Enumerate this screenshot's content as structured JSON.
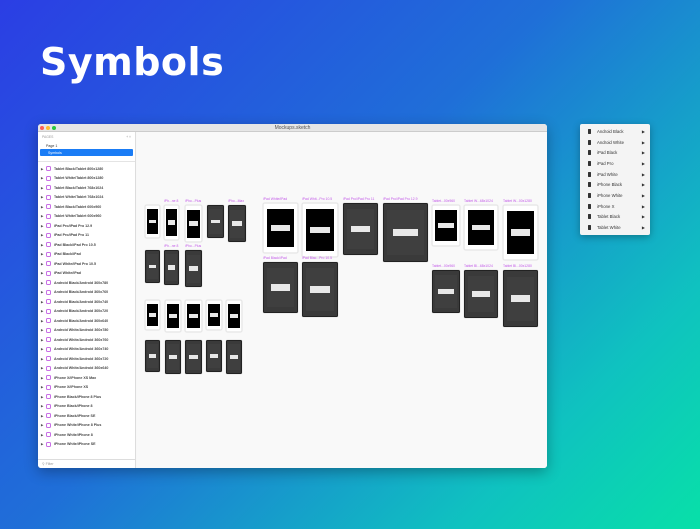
{
  "heading": "Symbols",
  "window": {
    "title": "Mockups.sketch",
    "traffic_colors": [
      "#fc5f57",
      "#fdbc2e",
      "#28c840"
    ]
  },
  "sidebar": {
    "pages_label": "PAGES",
    "pages": [
      {
        "label": "Page 1",
        "selected": false
      },
      {
        "label": "Symbols",
        "selected": true
      }
    ],
    "layers": [
      "Tablet Black/Tablet 800x1280",
      "Tablet White/Tablet 800x1280",
      "Tablet Black/Tablet 768x1024",
      "Tablet White/Tablet 768x1024",
      "Tablet Black/Tablet 600x960",
      "Tablet White/Tablet 600x960",
      "iPad Pro/iPad Pro 12.9",
      "iPad Pro/iPad Pro 11",
      "iPad Black/iPad Pro 10.5",
      "iPad Black/iPad",
      "iPad White/iPad Pro 10.5",
      "iPad White/iPad",
      "Android Black/Android 360x780",
      "Android Black/Android 360x760",
      "Android Black/Android 360x740",
      "Android Black/Android 360x720",
      "Android Black/Android 360x640",
      "Android White/Android 360x780",
      "Android White/Android 360x760",
      "Android White/Android 360x740",
      "Android White/Android 360x720",
      "Android White/Android 360x640",
      "iPhone X/iPhone XS Max",
      "iPhone X/iPhone XS",
      "iPhone Black/iPhone 8 Plus",
      "iPhone Black/iPhone 8",
      "iPhone Black/iPhone SE",
      "iPhone White/iPhone 8 Plus",
      "iPhone White/iPhone 8",
      "iPhone White/iPhone SE"
    ],
    "filter_placeholder": "Filter"
  },
  "canvas_labels": [
    "iPh...ne 8",
    "iPho...Plus",
    "iPho...Max",
    "iPh...ne 8",
    "iPho...Plus",
    "iPad White/iPad",
    "iPad Whit...Pro 10.5",
    "iPad Pro/iPad Pro 11",
    "iPad Pro/iPad Pro 12.9",
    "iPad Black/iPad",
    "iPad Blac...Pro 10.5",
    "Tablet...00x960",
    "Tablet W...68x1024",
    "Tablet W...00x1280",
    "Tablet...00x960",
    "Tablet Bl...68x1024",
    "Tablet Bl...00x1280"
  ],
  "menu": {
    "items": [
      "Android Black",
      "Android White",
      "iPad Black",
      "iPad Pro",
      "iPad White",
      "iPhone Black",
      "iPhone White",
      "iPhone X",
      "Tablet Black",
      "Tablet White"
    ],
    "submenu_icon": "triangle-right-icon"
  }
}
